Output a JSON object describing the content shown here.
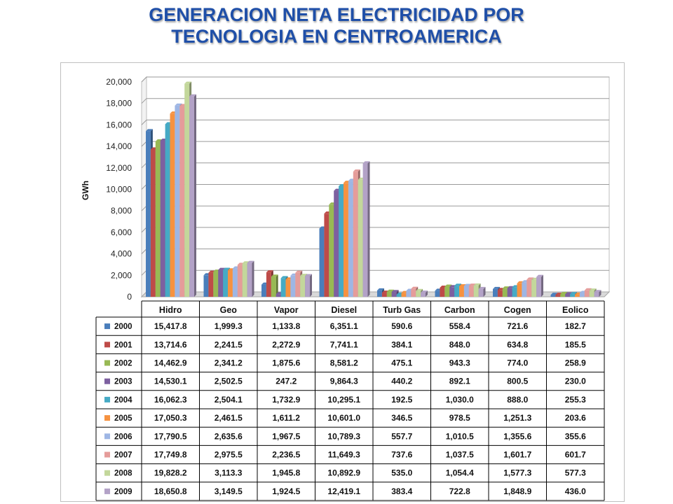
{
  "title": {
    "line1": "GENERACION NETA ELECTRICIDAD POR",
    "line2": "TECNOLOGIA EN CENTROAMERICA"
  },
  "chart_data": {
    "type": "bar",
    "title": "GENERACION NETA ELECTRICIDAD POR TECNOLOGIA EN CENTROAMERICA",
    "xlabel": "",
    "ylabel": "GWh",
    "ylim": [
      0,
      20000
    ],
    "ytick_labels": [
      "0",
      "2,000",
      "4,000",
      "6,000",
      "8,000",
      "10,000",
      "12,000",
      "14,000",
      "16,000",
      "18,000",
      "20,000"
    ],
    "ytick_values": [
      0,
      2000,
      4000,
      6000,
      8000,
      10000,
      12000,
      14000,
      16000,
      18000,
      20000
    ],
    "grid": true,
    "legend": "data table below chart",
    "categories": [
      "Hidro",
      "Geo",
      "Vapor",
      "Diesel",
      "Turb Gas",
      "Carbon",
      "Cogen",
      "Eolico"
    ],
    "series": [
      {
        "name": "2000",
        "color": "#4a7ebb",
        "values": [
          15417.8,
          1999.3,
          1133.8,
          6351.1,
          590.6,
          558.4,
          721.6,
          182.7
        ],
        "labels": [
          "15,417.8",
          "1,999.3",
          "1,133.8",
          "6,351.1",
          "590.6",
          "558.4",
          "721.6",
          "182.7"
        ]
      },
      {
        "name": "2001",
        "color": "#be4b48",
        "values": [
          13714.6,
          2241.5,
          2272.9,
          7741.1,
          384.1,
          848.0,
          634.8,
          185.5
        ],
        "labels": [
          "13,714.6",
          "2,241.5",
          "2,272.9",
          "7,741.1",
          "384.1",
          "848.0",
          "634.8",
          "185.5"
        ]
      },
      {
        "name": "2002",
        "color": "#98b954",
        "values": [
          14462.9,
          2341.2,
          1875.6,
          8581.2,
          475.1,
          943.3,
          774.0,
          258.9
        ],
        "labels": [
          "14,462.9",
          "2,341.2",
          "1,875.6",
          "8,581.2",
          "475.1",
          "943.3",
          "774.0",
          "258.9"
        ]
      },
      {
        "name": "2003",
        "color": "#7d60a0",
        "values": [
          14530.1,
          2502.5,
          247.2,
          9864.3,
          440.2,
          892.1,
          800.5,
          230.0
        ],
        "labels": [
          "14,530.1",
          "2,502.5",
          "247.2",
          "9,864.3",
          "440.2",
          "892.1",
          "800.5",
          "230.0"
        ]
      },
      {
        "name": "2004",
        "color": "#46aac5",
        "values": [
          16062.3,
          2504.1,
          1732.9,
          10295.1,
          192.5,
          1030.0,
          888.0,
          255.3
        ],
        "labels": [
          "16,062.3",
          "2,504.1",
          "1,732.9",
          "10,295.1",
          "192.5",
          "1,030.0",
          "888.0",
          "255.3"
        ]
      },
      {
        "name": "2005",
        "color": "#f69240",
        "values": [
          17050.3,
          2461.5,
          1611.2,
          10601.0,
          346.5,
          978.5,
          1251.3,
          203.6
        ],
        "labels": [
          "17,050.3",
          "2,461.5",
          "1,611.2",
          "10,601.0",
          "346.5",
          "978.5",
          "1,251.3",
          "203.6"
        ]
      },
      {
        "name": "2006",
        "color": "#9eb6e4",
        "values": [
          17790.5,
          2635.6,
          1967.5,
          10789.3,
          557.7,
          1010.5,
          1355.6,
          355.6
        ],
        "labels": [
          "17,790.5",
          "2,635.6",
          "1,967.5",
          "10,789.3",
          "557.7",
          "1,010.5",
          "1,355.6",
          "355.6"
        ]
      },
      {
        "name": "2007",
        "color": "#e59c9a",
        "values": [
          17749.8,
          2975.5,
          2236.5,
          11649.3,
          737.6,
          1037.5,
          1601.7,
          601.7
        ],
        "labels": [
          "17,749.8",
          "2,975.5",
          "2,236.5",
          "11,649.3",
          "737.6",
          "1,037.5",
          "1,601.7",
          "601.7"
        ]
      },
      {
        "name": "2008",
        "color": "#c3d79b",
        "values": [
          19828.2,
          3113.3,
          1945.8,
          10892.9,
          535.0,
          1054.4,
          1577.3,
          577.3
        ],
        "labels": [
          "19,828.2",
          "3,113.3",
          "1,945.8",
          "10,892.9",
          "535.0",
          "1,054.4",
          "1,577.3",
          "577.3"
        ]
      },
      {
        "name": "2009",
        "color": "#b3a2c7",
        "values": [
          18650.8,
          3149.5,
          1924.5,
          12419.1,
          383.4,
          722.8,
          1848.9,
          436.0
        ],
        "labels": [
          "18,650.8",
          "3,149.5",
          "1,924.5",
          "12,419.1",
          "383.4",
          "722.8",
          "1,848.9",
          "436.0"
        ]
      }
    ]
  }
}
